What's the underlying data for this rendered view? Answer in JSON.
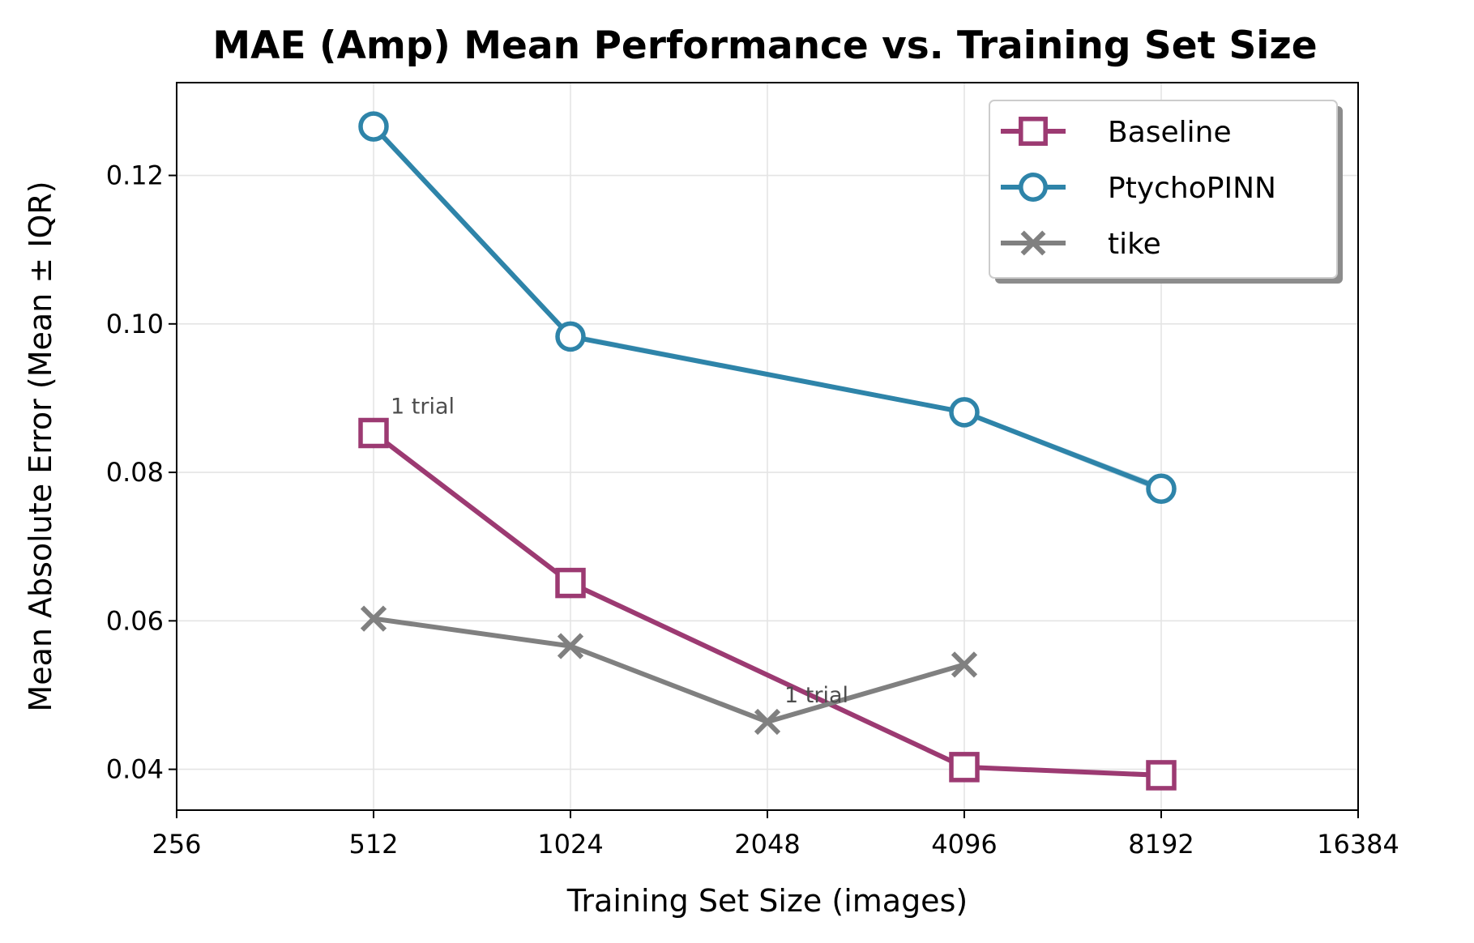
{
  "chart_data": {
    "type": "line",
    "title": "MAE (Amp) Mean Performance vs. Training Set Size",
    "xlabel": "Training Set Size (images)",
    "ylabel": "Mean Absolute Error (Mean ± IQR)",
    "x_scale": "log2",
    "xlim": [
      256,
      16384
    ],
    "ylim": [
      0.0345,
      0.1325
    ],
    "x_ticks": [
      256,
      512,
      1024,
      2048,
      4096,
      8192,
      16384
    ],
    "x_tick_labels": [
      "256",
      "512",
      "1024",
      "2048",
      "4096",
      "8192",
      "16384"
    ],
    "y_ticks": [
      0.04,
      0.06,
      0.08,
      0.1,
      0.12
    ],
    "y_tick_labels": [
      "0.04",
      "0.06",
      "0.08",
      "0.10",
      "0.12"
    ],
    "grid": true,
    "legend_position": "top-right",
    "series": [
      {
        "name": "Baseline",
        "color": "#9c3a72",
        "marker": "square",
        "x": [
          512,
          1024,
          4096,
          8192
        ],
        "y": [
          0.0853,
          0.0651,
          0.0403,
          0.0392
        ]
      },
      {
        "name": "PtychoPINN",
        "color": "#2e84a9",
        "marker": "circle",
        "x": [
          512,
          1024,
          4096,
          8192
        ],
        "y": [
          0.1266,
          0.0983,
          0.0881,
          0.0778
        ],
        "band_lower": [
          0.1262,
          0.098,
          0.0878,
          0.0773
        ],
        "band_upper": [
          0.1271,
          0.0987,
          0.0884,
          0.0783
        ]
      },
      {
        "name": "tike",
        "color": "#808080",
        "marker": "x",
        "x": [
          512,
          1024,
          2048,
          4096
        ],
        "y": [
          0.0603,
          0.0566,
          0.0464,
          0.0541
        ]
      }
    ],
    "annotations": [
      {
        "text": "1 trial",
        "x": 512,
        "y": 0.0853
      },
      {
        "text": "1 trial",
        "x": 2048,
        "y": 0.0464
      }
    ]
  }
}
